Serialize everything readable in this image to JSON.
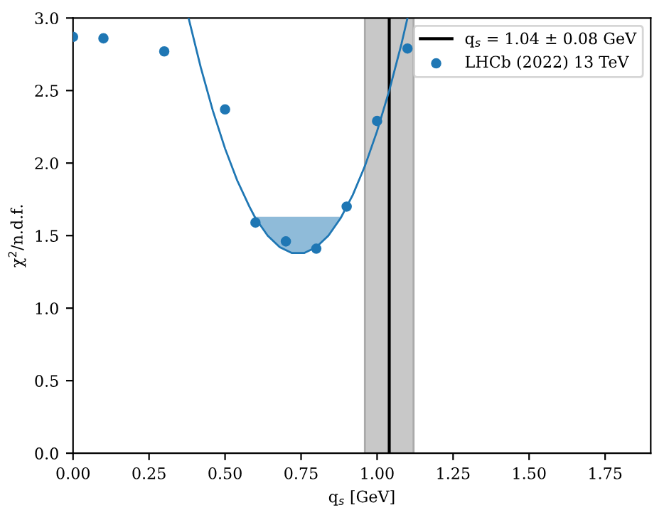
{
  "chart_data": {
    "type": "line",
    "xlabel": "q$_{s}$ [GeV]",
    "ylabel": "χ$^{2}$/n.d.f.",
    "xlim": [
      0,
      1.9
    ],
    "ylim": [
      0,
      3.0
    ],
    "xticks": [
      {
        "value": 0,
        "label": "0.00"
      },
      0.25,
      {
        "value": 0.5,
        "label": "0.50"
      },
      0.75,
      {
        "value": 1,
        "label": "1.00"
      },
      1.25,
      {
        "value": 1.5,
        "label": "1.50"
      },
      1.75
    ],
    "yticks": [
      {
        "value": 0,
        "label": "0.0"
      },
      0.5,
      {
        "value": 1,
        "label": "1.0"
      },
      1.5,
      {
        "value": 2,
        "label": "2.0"
      },
      2.5,
      {
        "value": 3,
        "label": "3.0"
      }
    ],
    "grid": false,
    "legend": "top right",
    "series": [
      {
        "color": "#1f77b4",
        "x": [
          0.38,
          0.42,
          0.46,
          0.5,
          0.54,
          0.58,
          0.6,
          0.64,
          0.68,
          0.72,
          0.76,
          0.8,
          0.84,
          0.88,
          0.92,
          0.96,
          1.0,
          1.04,
          1.08,
          1.1
        ],
        "values": [
          3.0,
          2.66,
          2.36,
          2.1,
          1.88,
          1.7,
          1.62,
          1.5,
          1.42,
          1.38,
          1.38,
          1.42,
          1.5,
          1.62,
          1.78,
          1.98,
          2.22,
          2.5,
          2.82,
          3.0
        ],
        "lower": [
          null,
          null,
          null,
          null,
          null,
          null,
          1.62,
          1.5,
          1.42,
          1.38,
          1.38,
          1.42,
          1.5,
          1.62,
          null,
          null,
          null,
          null,
          null,
          null
        ],
        "upper": [
          null,
          null,
          null,
          null,
          null,
          null,
          1.63,
          1.63,
          1.63,
          1.63,
          1.63,
          1.63,
          1.63,
          1.63,
          null,
          null,
          null,
          null,
          null,
          null
        ]
      },
      {
        "type": "scatter",
        "marker": "circle",
        "name": "LHCb (2022) 13 TeV",
        "color": "#1f77b4",
        "x": [
          0,
          0.1,
          0.3,
          0.5,
          0.6,
          0.7,
          0.8,
          0.9,
          1.0,
          1.1
        ],
        "values": [
          2.87,
          2.86,
          2.77,
          2.37,
          1.59,
          1.46,
          1.41,
          1.7,
          2.29,
          2.79
        ]
      }
    ],
    "ref_lines": [
      {
        "axis": "x",
        "value": 1.04,
        "label": "q$_{s}$ = 1.04 ± 0.08 GeV",
        "color": "#000000"
      }
    ],
    "bands": [
      {
        "axis": "x",
        "from": 0.96,
        "to": 1.12,
        "color": "#c8c8c8"
      }
    ]
  }
}
